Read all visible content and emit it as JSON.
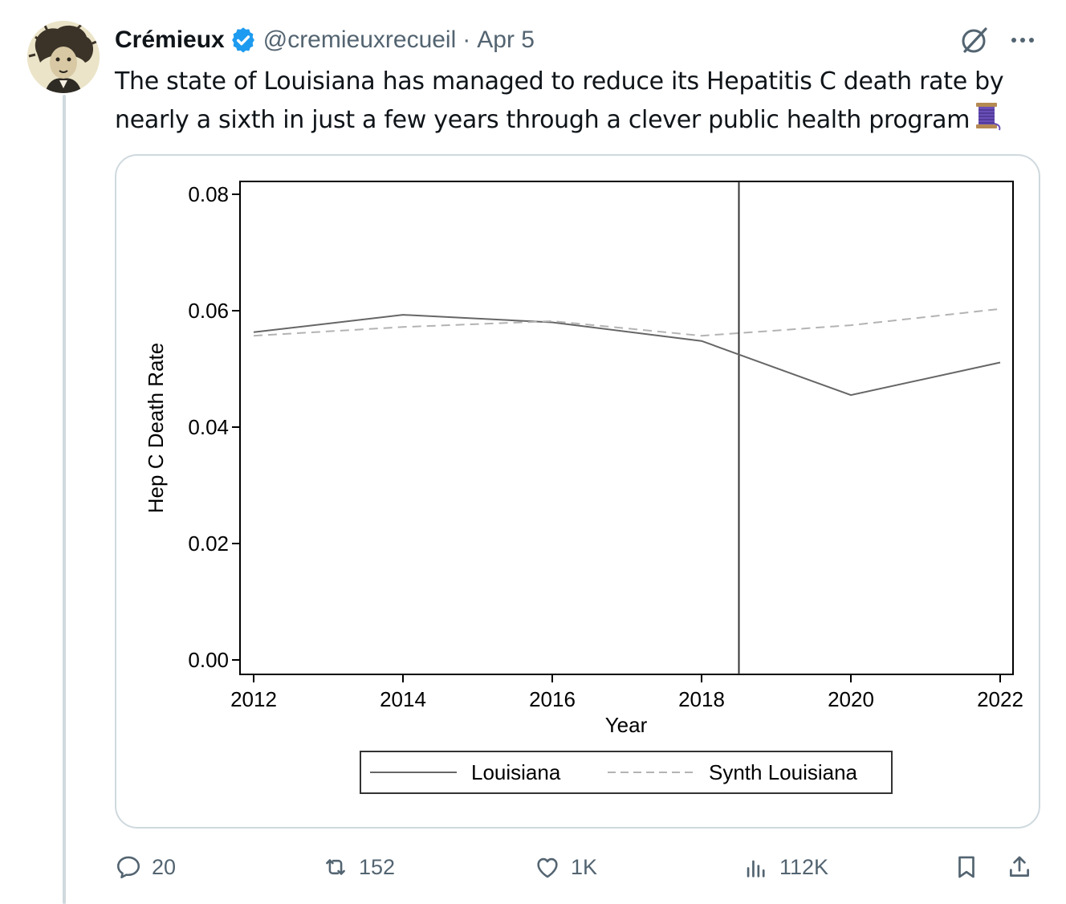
{
  "tweet": {
    "author_name": "Crémieux",
    "handle": "@cremieuxrecueil",
    "separator": "·",
    "date": "Apr 5",
    "text_line1": "The state of Louisiana has managed to reduce its Hepatitis C death rate by",
    "text_line2": "nearly a sixth in just a few years through a clever public health program"
  },
  "actions": {
    "replies": "20",
    "reposts": "152",
    "likes": "1K",
    "views": "112K"
  },
  "icons": {
    "verified": "verified-badge-icon",
    "grok": "grok-icon",
    "more": "more-options-icon",
    "reply": "reply-icon",
    "repost": "repost-icon",
    "like": "like-icon",
    "views": "views-icon",
    "bookmark": "bookmark-icon",
    "share": "share-icon",
    "emoji": "spool-of-thread-icon"
  },
  "colors": {
    "verified_blue": "#1d9bf0",
    "muted_text": "#536471",
    "louisiana_line": "#666666",
    "synth_line": "#b3b3b3"
  },
  "chart_data": {
    "type": "line",
    "xlabel": "Year",
    "ylabel": "Hep C Death Rate",
    "xlim": [
      2012,
      2022
    ],
    "ylim": [
      0,
      0.08
    ],
    "x_ticks": [
      "2012",
      "2014",
      "2016",
      "2018",
      "2020",
      "2022"
    ],
    "y_ticks": [
      "0.00",
      "0.02",
      "0.04",
      "0.06",
      "0.08"
    ],
    "vertical_line_x": 2018.5,
    "legend_position": "bottom",
    "series": [
      {
        "name": "Louisiana",
        "style": "solid",
        "x": [
          2012,
          2014,
          2016,
          2018,
          2020,
          2022
        ],
        "y": [
          0.0563,
          0.0593,
          0.058,
          0.0548,
          0.0455,
          0.0511
        ]
      },
      {
        "name": "Synth Louisiana",
        "style": "dashed",
        "x": [
          2012,
          2014,
          2016,
          2018,
          2020,
          2022
        ],
        "y": [
          0.0557,
          0.0572,
          0.0582,
          0.0557,
          0.0575,
          0.0603
        ]
      }
    ]
  }
}
